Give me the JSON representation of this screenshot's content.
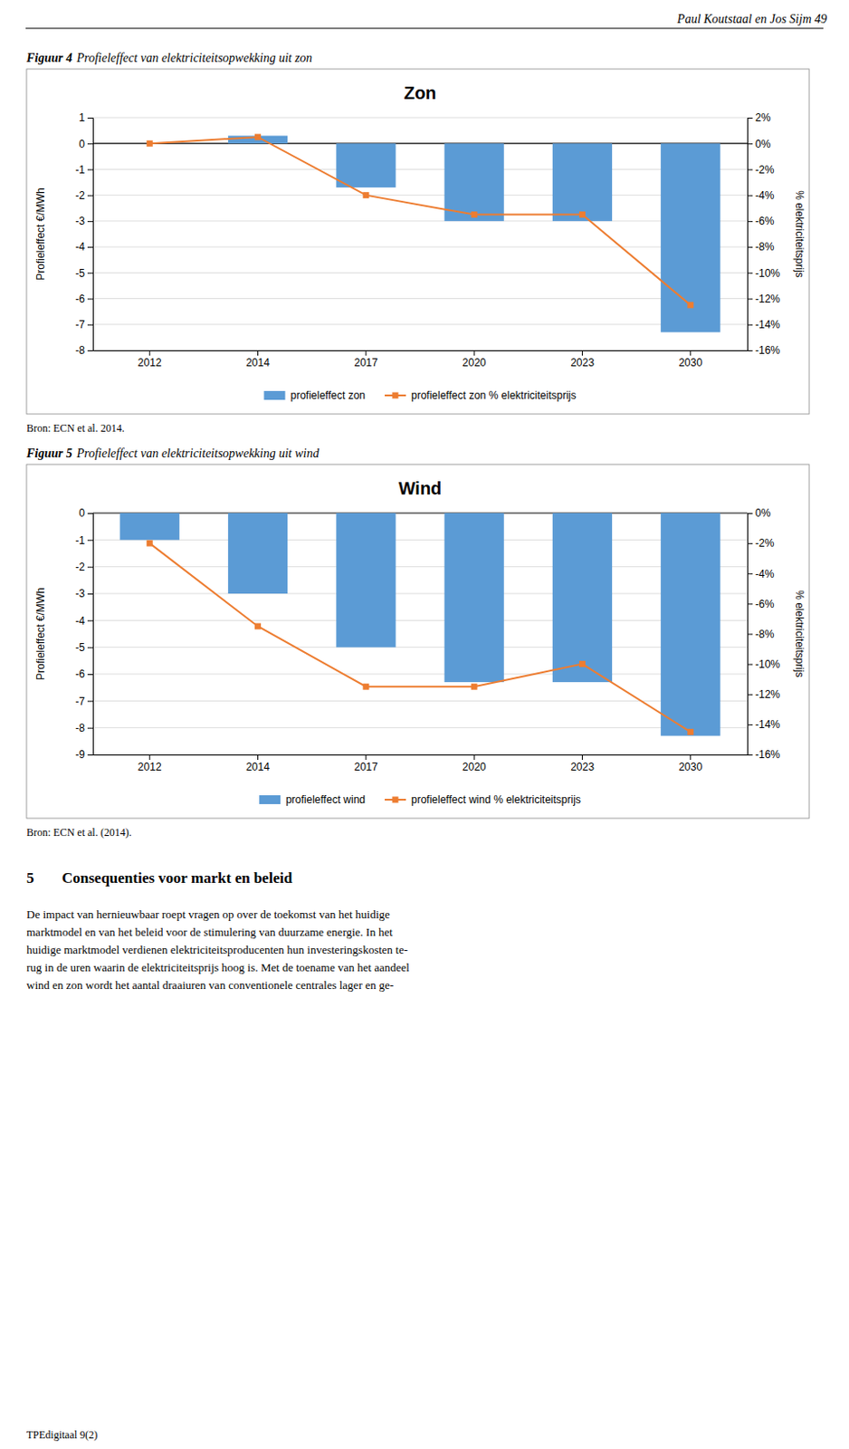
{
  "page_header": "Paul Koutstaal en Jos Sijm   49",
  "captions": [
    {
      "label": "Figuur 4",
      "text": "Profieleffect van elektriciteitsopwekking uit zon"
    },
    {
      "label": "Figuur 5",
      "text": "Profieleffect van elektriciteitsopwekking uit wind"
    }
  ],
  "sources": [
    "Bron: ECN et al. 2014.",
    "Bron: ECN et al. (2014)."
  ],
  "section_number": "5",
  "section_title": "Consequenties voor markt en beleid",
  "body_lines": [
    "De impact van hernieuwbaar roept vragen op over de toekomst van het huidige",
    "marktmodel en van het beleid voor de stimulering van duurzame energie. In het",
    "huidige marktmodel verdienen elektriciteitsproducenten hun investeringskosten te-",
    "rug in de uren waarin de elektriciteitsprijs hoog is. Met de toename van het aandeel",
    "wind en zon wordt het aantal draaiuren van conventionele centrales lager en ge-"
  ],
  "footer": "TPEdigitaal 9(2)",
  "chart_data": [
    {
      "type": "bar",
      "title": "Zon",
      "categories": [
        "2012",
        "2014",
        "2017",
        "2020",
        "2023",
        "2030"
      ],
      "series": [
        {
          "name": "profieleffect zon",
          "type": "bar",
          "color": "#5B9BD5",
          "values": [
            0.0,
            0.3,
            -1.7,
            -3.0,
            -3.0,
            -7.3
          ]
        },
        {
          "name": "profieleffect zon % elektriciteitsprijs",
          "type": "line",
          "axis": "y2",
          "marker": "square",
          "color": "#ED7D31",
          "values": [
            0.0,
            0.5,
            -4.0,
            -5.5,
            -5.5,
            -12.5
          ]
        }
      ],
      "ylabel": "Profieleffect €/MWh",
      "y2label": "% elektriciteitsprijs",
      "ylim": [
        -8,
        1
      ],
      "yticks": [
        1,
        0,
        -1,
        -2,
        -3,
        -4,
        -5,
        -6,
        -7,
        -8
      ],
      "y2lim": [
        -16,
        2
      ],
      "y2ticks": [
        {
          "value": 2,
          "label": "2%"
        },
        {
          "value": 0,
          "label": "0%"
        },
        {
          "value": -2,
          "label": "-2%"
        },
        {
          "value": -4,
          "label": "-4%"
        },
        {
          "value": -6,
          "label": "-6%"
        },
        {
          "value": -8,
          "label": "-8%"
        },
        {
          "value": -10,
          "label": "-10%"
        },
        {
          "value": -12,
          "label": "-12%"
        },
        {
          "value": -14,
          "label": "-14%"
        },
        {
          "value": -16,
          "label": "-16%"
        }
      ],
      "grid": true,
      "legend": "bottom"
    },
    {
      "type": "bar",
      "title": "Wind",
      "categories": [
        "2012",
        "2014",
        "2017",
        "2020",
        "2023",
        "2030"
      ],
      "series": [
        {
          "name": "profieleffect wind",
          "type": "bar",
          "color": "#5B9BD5",
          "values": [
            -1.0,
            -3.0,
            -5.0,
            -6.3,
            -6.3,
            -8.3
          ]
        },
        {
          "name": "profieleffect wind % elektriciteitsprijs",
          "type": "line",
          "axis": "y2",
          "marker": "square",
          "color": "#ED7D31",
          "values": [
            -2.0,
            -7.5,
            -11.5,
            -11.5,
            -10.0,
            -14.5
          ]
        }
      ],
      "ylabel": "Profieleffect €/MWh",
      "y2label": "% elektriciteitsprijs",
      "ylim": [
        -9,
        0
      ],
      "yticks": [
        0,
        -1,
        -2,
        -3,
        -4,
        -5,
        -6,
        -7,
        -8,
        -9
      ],
      "y2lim": [
        -16,
        0
      ],
      "y2ticks": [
        {
          "value": 0,
          "label": "0%"
        },
        {
          "value": -2,
          "label": "-2%"
        },
        {
          "value": -4,
          "label": "-4%"
        },
        {
          "value": -6,
          "label": "-6%"
        },
        {
          "value": -8,
          "label": "-8%"
        },
        {
          "value": -10,
          "label": "-10%"
        },
        {
          "value": -12,
          "label": "-12%"
        },
        {
          "value": -14,
          "label": "-14%"
        },
        {
          "value": -16,
          "label": "-16%"
        }
      ],
      "grid": true,
      "legend": "bottom"
    }
  ]
}
